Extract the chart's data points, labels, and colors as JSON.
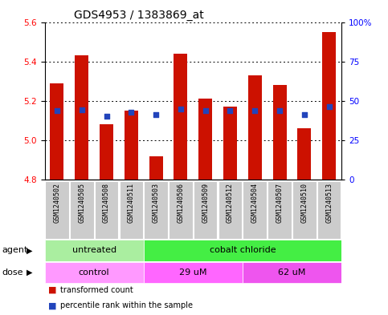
{
  "title": "GDS4953 / 1383869_at",
  "samples": [
    "GSM1240502",
    "GSM1240505",
    "GSM1240508",
    "GSM1240511",
    "GSM1240503",
    "GSM1240506",
    "GSM1240509",
    "GSM1240512",
    "GSM1240504",
    "GSM1240507",
    "GSM1240510",
    "GSM1240513"
  ],
  "bar_values": [
    5.29,
    5.43,
    5.08,
    5.15,
    4.92,
    5.44,
    5.21,
    5.17,
    5.33,
    5.28,
    5.06,
    5.55
  ],
  "percentile_values": [
    5.15,
    5.155,
    5.12,
    5.14,
    5.13,
    5.16,
    5.15,
    5.15,
    5.15,
    5.15,
    5.13,
    5.17
  ],
  "bar_bottom": 4.8,
  "ylim_left": [
    4.8,
    5.6
  ],
  "ylim_right": [
    0,
    100
  ],
  "yticks_left": [
    4.8,
    5.0,
    5.2,
    5.4,
    5.6
  ],
  "yticks_right": [
    0,
    25,
    50,
    75,
    100
  ],
  "ytick_labels_right": [
    "0",
    "25",
    "50",
    "75",
    "100%"
  ],
  "bar_color": "#CC1100",
  "percentile_color": "#2244BB",
  "bar_width": 0.55,
  "agent_groups": [
    {
      "label": "untreated",
      "start": 0,
      "end": 4,
      "color": "#AAEEA0"
    },
    {
      "label": "cobalt chloride",
      "start": 4,
      "end": 12,
      "color": "#44EE44"
    }
  ],
  "dose_groups": [
    {
      "label": "control",
      "start": 0,
      "end": 4,
      "color": "#FF99FF"
    },
    {
      "label": "29 uM",
      "start": 4,
      "end": 8,
      "color": "#FF66FF"
    },
    {
      "label": "62 uM",
      "start": 8,
      "end": 12,
      "color": "#EE55EE"
    }
  ],
  "legend_bar_label": "transformed count",
  "legend_pct_label": "percentile rank within the sample",
  "xlabel_agent": "agent",
  "xlabel_dose": "dose",
  "sample_bg_color": "#CCCCCC",
  "plot_bg": "#FFFFFF",
  "title_fontsize": 10,
  "tick_fontsize": 7.5,
  "label_fontsize": 8,
  "row_label_fontsize": 8,
  "sample_fontsize": 6
}
